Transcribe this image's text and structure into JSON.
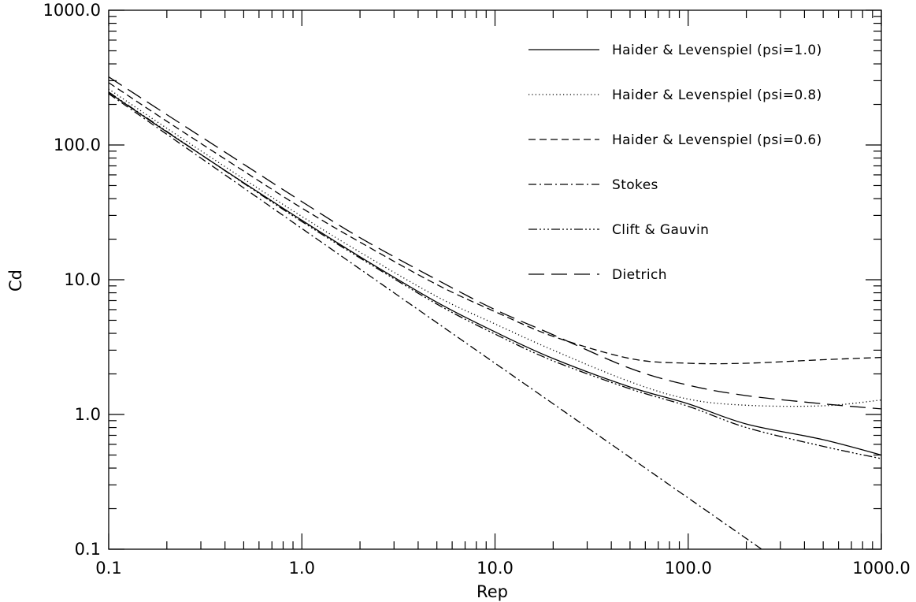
{
  "chart_data": {
    "type": "line",
    "title": "",
    "xlabel": "Rep",
    "ylabel": "Cd",
    "xscale": "log",
    "yscale": "log",
    "xlim": [
      0.1,
      1000.0
    ],
    "ylim": [
      0.1,
      1000.0
    ],
    "xticks": [
      "0.1",
      "1.0",
      "10.0",
      "100.0",
      "1000.0"
    ],
    "yticks": [
      "0.1",
      "1.0",
      "10.0",
      "100.0",
      "1000.0"
    ],
    "grid": false,
    "legend_position": "top-right",
    "series": [
      {
        "name": "Haider & Levenspiel (psi=1.0)",
        "linestyle": "solid",
        "x": [
          0.1,
          0.2,
          0.5,
          1.0,
          2.0,
          5.0,
          10.0,
          20.0,
          50.0,
          100.0,
          200.0,
          500.0,
          1000.0
        ],
        "y": [
          245.0,
          125.0,
          52.5,
          27.6,
          14.8,
          6.8,
          4.1,
          2.6,
          1.6,
          1.2,
          0.85,
          0.65,
          0.5
        ]
      },
      {
        "name": "Haider & Levenspiel (psi=0.8)",
        "linestyle": "dotted",
        "x": [
          0.1,
          0.2,
          0.5,
          1.0,
          2.0,
          5.0,
          10.0,
          20.0,
          50.0,
          100.0,
          200.0,
          500.0,
          1000.0
        ],
        "y": [
          260.0,
          133.0,
          56.0,
          29.5,
          16.0,
          7.5,
          4.7,
          3.0,
          1.75,
          1.3,
          1.17,
          1.16,
          1.28
        ]
      },
      {
        "name": "Haider & Levenspiel (psi=0.6)",
        "linestyle": "dashed",
        "x": [
          0.1,
          0.2,
          0.5,
          1.0,
          2.0,
          5.0,
          10.0,
          20.0,
          50.0,
          100.0,
          200.0,
          500.0,
          1000.0
        ],
        "y": [
          290.0,
          150.0,
          64.0,
          34.0,
          19.0,
          9.2,
          5.8,
          3.8,
          2.6,
          2.4,
          2.4,
          2.55,
          2.65
        ]
      },
      {
        "name": "Stokes",
        "linestyle": "dashdot",
        "x": [
          0.1,
          1.0,
          10.0,
          100.0,
          240.0
        ],
        "y": [
          240.0,
          24.0,
          2.4,
          0.24,
          0.1
        ]
      },
      {
        "name": "Clift & Gauvin",
        "linestyle": "dashdotdotdot",
        "x": [
          0.1,
          0.2,
          0.5,
          1.0,
          2.0,
          5.0,
          10.0,
          20.0,
          50.0,
          100.0,
          200.0,
          500.0,
          1000.0
        ],
        "y": [
          247.0,
          126.0,
          52.0,
          27.0,
          14.5,
          6.6,
          3.95,
          2.5,
          1.55,
          1.15,
          0.8,
          0.58,
          0.47
        ]
      },
      {
        "name": "Dietrich",
        "linestyle": "longdash",
        "x": [
          0.1,
          0.2,
          0.5,
          1.0,
          2.0,
          5.0,
          10.0,
          20.0,
          50.0,
          100.0,
          200.0,
          500.0,
          1000.0
        ],
        "y": [
          320.0,
          168.0,
          72.0,
          38.0,
          20.5,
          10.0,
          6.0,
          3.9,
          2.2,
          1.65,
          1.38,
          1.2,
          1.1
        ]
      }
    ]
  }
}
